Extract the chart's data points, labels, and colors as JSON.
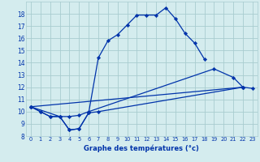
{
  "bg_color": "#d4ecee",
  "grid_color": "#a8ccd0",
  "line_color": "#0033aa",
  "xlabel": "Graphe des températures (°c)",
  "main_x": [
    0,
    1,
    2,
    3,
    4,
    5,
    6,
    7,
    8,
    9,
    10,
    11,
    12,
    13,
    14,
    15,
    16,
    17,
    18
  ],
  "main_y": [
    10.4,
    10.0,
    9.6,
    9.6,
    8.5,
    8.6,
    9.9,
    14.4,
    15.8,
    16.3,
    17.1,
    17.9,
    17.9,
    17.9,
    18.5,
    17.6,
    16.4,
    15.6,
    14.3
  ],
  "line2_x": [
    0,
    1,
    2,
    3,
    4,
    5,
    6,
    7,
    22
  ],
  "line2_y": [
    10.4,
    10.0,
    9.6,
    9.6,
    8.5,
    8.6,
    9.9,
    10.0,
    12.0
  ],
  "line3_x": [
    0,
    3,
    4,
    5,
    6,
    19,
    21,
    22
  ],
  "line3_y": [
    10.4,
    9.6,
    9.6,
    9.7,
    10.0,
    13.5,
    12.8,
    12.0
  ],
  "line4_x": [
    0,
    22,
    23
  ],
  "line4_y": [
    10.4,
    12.0,
    11.9
  ],
  "ylim": [
    8,
    19
  ],
  "xlim": [
    -0.5,
    23.5
  ],
  "yticks": [
    8,
    9,
    10,
    11,
    12,
    13,
    14,
    15,
    16,
    17,
    18
  ],
  "xticks": [
    0,
    1,
    2,
    3,
    4,
    5,
    6,
    7,
    8,
    9,
    10,
    11,
    12,
    13,
    14,
    15,
    16,
    17,
    18,
    19,
    20,
    21,
    22,
    23
  ]
}
